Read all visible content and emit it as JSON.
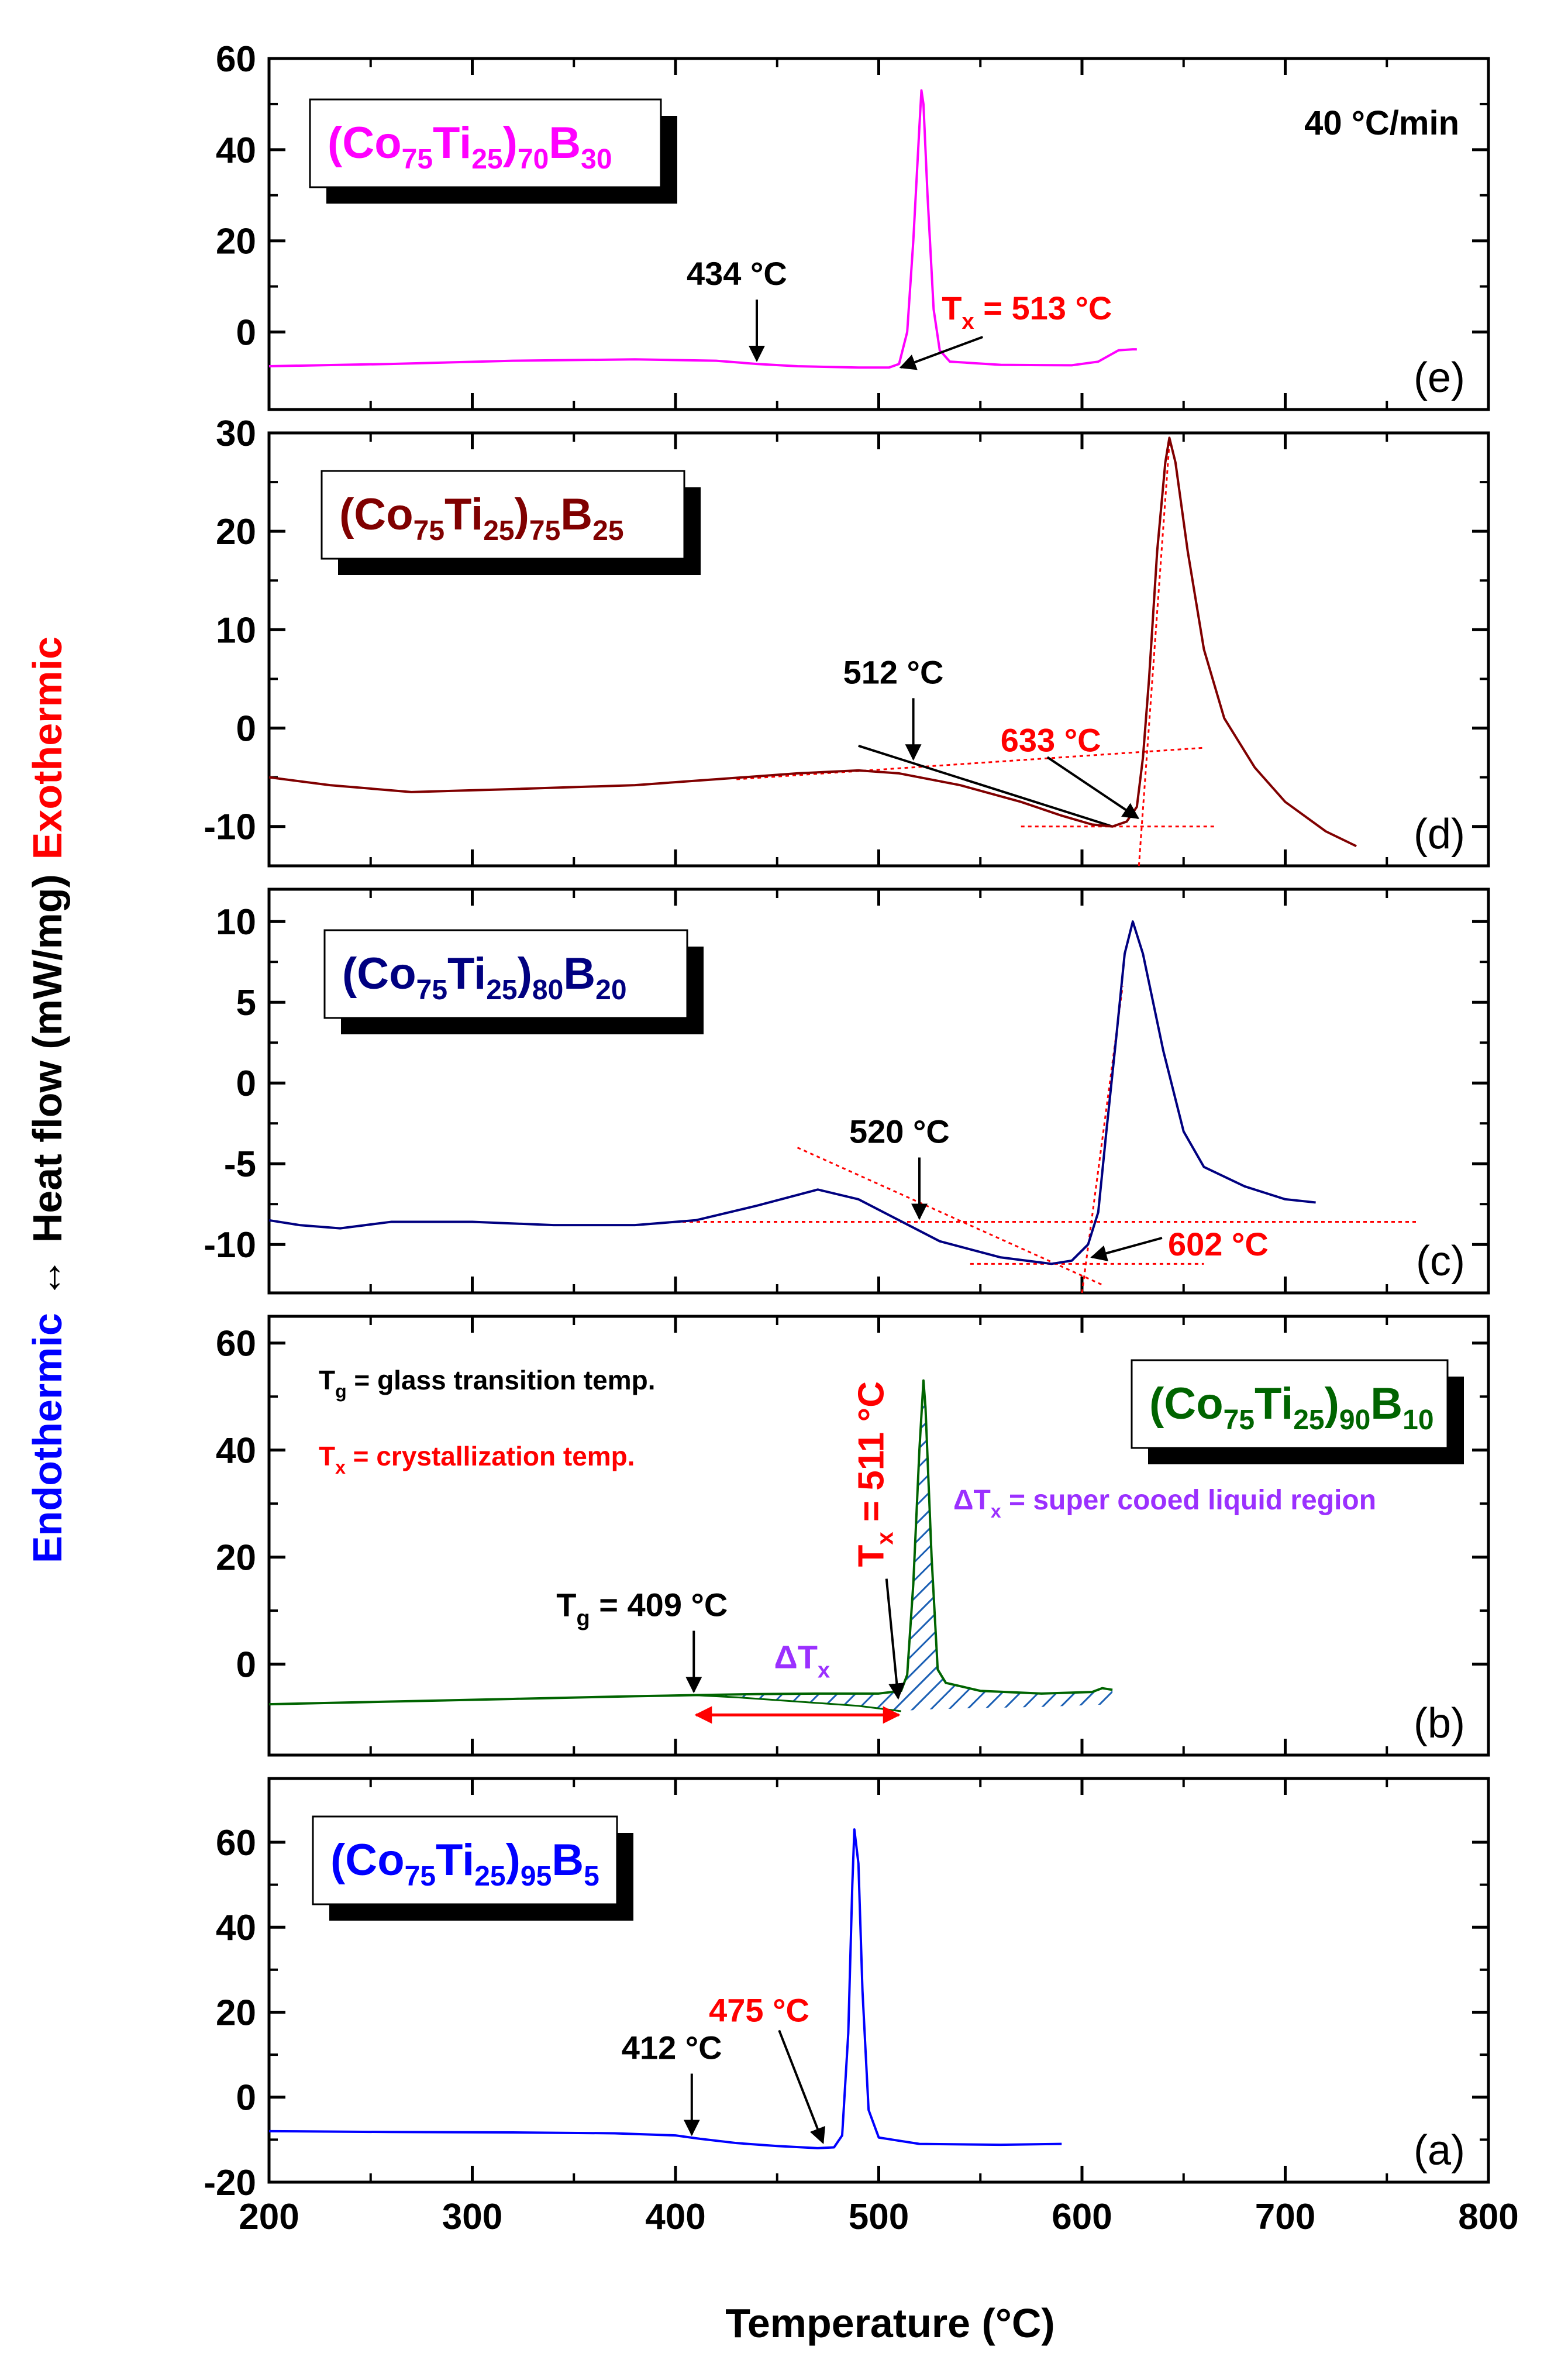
{
  "chart_data": {
    "type": "line",
    "heating_rate": "40 °C/min",
    "xlabel": "Temperature (°C)",
    "xlim": [
      200,
      800
    ],
    "x_ticks": [
      "200",
      "300",
      "400",
      "500",
      "600",
      "700",
      "800"
    ],
    "ylabel": {
      "main": "Heat flow (mW/mg)",
      "endo": "Endothermic",
      "exo": "Exothermic",
      "arrow": "↔"
    },
    "panels": [
      {
        "id": "e",
        "label": "(e)",
        "color": "#ff00ff",
        "legend": {
          "base": "(Co",
          "s1": "75",
          "ti": "Ti",
          "s2": "25",
          "cl": ")",
          "s3": "70",
          "b": "B",
          "s4": "30"
        },
        "ylim": [
          -17,
          60
        ],
        "y_ticks": [
          0,
          20,
          40,
          60
        ],
        "curve": [
          [
            200,
            -7.5
          ],
          [
            260,
            -7
          ],
          [
            320,
            -6.3
          ],
          [
            380,
            -6
          ],
          [
            420,
            -6.3
          ],
          [
            440,
            -7
          ],
          [
            460,
            -7.5
          ],
          [
            490,
            -7.8
          ],
          [
            505,
            -7.8
          ],
          [
            510,
            -7
          ],
          [
            514,
            0
          ],
          [
            517,
            20
          ],
          [
            520,
            45
          ],
          [
            521,
            53
          ],
          [
            522,
            50
          ],
          [
            524,
            30
          ],
          [
            527,
            5
          ],
          [
            530,
            -4
          ],
          [
            535,
            -6.5
          ],
          [
            560,
            -7.2
          ],
          [
            595,
            -7.3
          ],
          [
            608,
            -6.5
          ],
          [
            618,
            -4
          ],
          [
            625,
            -3.8
          ],
          [
            627,
            -3.8
          ]
        ],
        "annotations": [
          {
            "kind": "tg",
            "text": "434 °C",
            "x": 440,
            "y": -7.0,
            "color": "#000000"
          },
          {
            "kind": "tx",
            "text": "Tx = 513 °C",
            "tsym": "T",
            "tsub": "x",
            "tval": " = 513 °C",
            "x": 508,
            "y": -7.5,
            "color": "#ff0000"
          }
        ]
      },
      {
        "id": "d",
        "label": "(d)",
        "color": "#800000",
        "legend": {
          "base": "(Co",
          "s1": "75",
          "ti": "Ti",
          "s2": "25",
          "cl": ")",
          "s3": "75",
          "b": "B",
          "s4": "25"
        },
        "ylim": [
          -14,
          30
        ],
        "y_ticks": [
          -10,
          0,
          10,
          20,
          30
        ],
        "curve": [
          [
            200,
            -5
          ],
          [
            230,
            -5.8
          ],
          [
            270,
            -6.5
          ],
          [
            320,
            -6.2
          ],
          [
            380,
            -5.8
          ],
          [
            420,
            -5.2
          ],
          [
            460,
            -4.6
          ],
          [
            490,
            -4.3
          ],
          [
            510,
            -4.6
          ],
          [
            540,
            -5.8
          ],
          [
            570,
            -7.5
          ],
          [
            590,
            -8.9
          ],
          [
            605,
            -9.8
          ],
          [
            615,
            -10
          ],
          [
            622,
            -9.5
          ],
          [
            627,
            -8
          ],
          [
            630,
            -3
          ],
          [
            633,
            5
          ],
          [
            637,
            18
          ],
          [
            641,
            27
          ],
          [
            643,
            29.5
          ],
          [
            646,
            27
          ],
          [
            652,
            18
          ],
          [
            660,
            8
          ],
          [
            670,
            1
          ],
          [
            685,
            -4
          ],
          [
            700,
            -7.5
          ],
          [
            720,
            -10.5
          ],
          [
            735,
            -12
          ]
        ],
        "annotations": [
          {
            "kind": "tg",
            "text": "512 °C",
            "x": 517,
            "y": -3.5,
            "color": "#000000"
          },
          {
            "kind": "tx",
            "text": "633 °C",
            "x": 629,
            "y": -9.5,
            "color": "#ff0000"
          }
        ]
      },
      {
        "id": "c",
        "label": "(c)",
        "color": "#000080",
        "legend": {
          "base": "(Co",
          "s1": "75",
          "ti": "Ti",
          "s2": "25",
          "cl": ")",
          "s3": "80",
          "b": "B",
          "s4": "20"
        },
        "ylim": [
          -13,
          12
        ],
        "y_ticks": [
          -10,
          -5,
          0,
          5,
          10
        ],
        "curve": [
          [
            200,
            -8.5
          ],
          [
            215,
            -8.8
          ],
          [
            235,
            -9
          ],
          [
            260,
            -8.6
          ],
          [
            300,
            -8.6
          ],
          [
            340,
            -8.8
          ],
          [
            380,
            -8.8
          ],
          [
            410,
            -8.5
          ],
          [
            440,
            -7.6
          ],
          [
            470,
            -6.6
          ],
          [
            490,
            -7.2
          ],
          [
            510,
            -8.5
          ],
          [
            530,
            -9.8
          ],
          [
            560,
            -10.8
          ],
          [
            585,
            -11.2
          ],
          [
            595,
            -11
          ],
          [
            603,
            -10
          ],
          [
            608,
            -8
          ],
          [
            612,
            -3
          ],
          [
            617,
            3
          ],
          [
            621,
            8
          ],
          [
            625,
            10
          ],
          [
            630,
            8
          ],
          [
            640,
            2
          ],
          [
            650,
            -3
          ],
          [
            660,
            -5.2
          ],
          [
            680,
            -6.4
          ],
          [
            700,
            -7.2
          ],
          [
            715,
            -7.4
          ]
        ],
        "annotations": [
          {
            "kind": "tg",
            "text": "520 °C",
            "x": 520,
            "y": -8.6,
            "color": "#000000"
          },
          {
            "kind": "tx",
            "text": "602 °C",
            "x": 602,
            "y": -10.5,
            "color": "#ff0000"
          }
        ]
      },
      {
        "id": "b",
        "label": "(b)",
        "color": "#006400",
        "legend": {
          "base": "(Co",
          "s1": "75",
          "ti": "Ti",
          "s2": "25",
          "cl": ")",
          "s3": "90",
          "b": "B",
          "s4": "10"
        },
        "ylim": [
          -17,
          65
        ],
        "y_ticks": [
          0,
          20,
          40,
          60
        ],
        "curve": [
          [
            200,
            -7.5
          ],
          [
            260,
            -7
          ],
          [
            320,
            -6.5
          ],
          [
            380,
            -6
          ],
          [
            409,
            -5.8
          ],
          [
            440,
            -5.6
          ],
          [
            470,
            -5.5
          ],
          [
            500,
            -5.5
          ],
          [
            511,
            -5
          ],
          [
            514,
            -2
          ],
          [
            517,
            15
          ],
          [
            520,
            40
          ],
          [
            522,
            53
          ],
          [
            523,
            48
          ],
          [
            526,
            20
          ],
          [
            529,
            -1
          ],
          [
            533,
            -3.5
          ],
          [
            550,
            -5
          ],
          [
            580,
            -5.5
          ],
          [
            605,
            -5.2
          ],
          [
            610,
            -4.5
          ],
          [
            615,
            -4.8
          ]
        ],
        "hatch": {
          "base_start": [
            409,
            -5.8
          ],
          "base_end": [
            511,
            -8.8
          ],
          "lower": [
            [
              409,
              -5.8
            ],
            [
              430,
              -6.2
            ],
            [
              460,
              -7.0
            ],
            [
              490,
              -7.8
            ],
            [
              511,
              -8.8
            ]
          ],
          "peak_region": [
            [
              511,
              -5
            ],
            [
              514,
              -2
            ],
            [
              517,
              15
            ],
            [
              520,
              40
            ],
            [
              522,
              53
            ],
            [
              523,
              48
            ],
            [
              526,
              20
            ],
            [
              529,
              -1
            ],
            [
              533,
              -3.5
            ],
            [
              550,
              -5
            ],
            [
              580,
              -5.5
            ],
            [
              605,
              -5.2
            ],
            [
              610,
              -4.5
            ],
            [
              615,
              -4.8
            ],
            [
              615,
              -7.5
            ],
            [
              580,
              -8
            ],
            [
              550,
              -8.2
            ],
            [
              520,
              -8.5
            ],
            [
              511,
              -8.8
            ]
          ]
        },
        "definitions": {
          "tg": {
            "sym": "T",
            "sub": "g",
            "text": " = glass transition temp."
          },
          "tx": {
            "sym": "T",
            "sub": "x",
            "text": " = crystallization temp."
          },
          "dtx": {
            "sym": "ΔT",
            "sub": "x",
            "text": " = super cooed liquid region"
          }
        },
        "annotations": [
          {
            "kind": "tg",
            "text": "Tg = 409 °C",
            "tsym": "T",
            "tsub": "g",
            "tval": " = 409 °C",
            "x": 409,
            "y": -5.8,
            "color": "#000000"
          },
          {
            "kind": "tx",
            "text": "Tx = 511 °C",
            "tsym": "T",
            "tsub": "x",
            "tval": " = 511 °C",
            "x": 511,
            "y": -7,
            "color": "#ff0000"
          },
          {
            "kind": "dtx",
            "text": "ΔTx",
            "tsym": "ΔT",
            "tsub": "x",
            "x_from": 409,
            "x_to": 511,
            "y": -9.5,
            "color": "#9b30ff"
          }
        ]
      },
      {
        "id": "a",
        "label": "(a)",
        "color": "#0000ff",
        "legend": {
          "base": "(Co",
          "s1": "75",
          "ti": "Ti",
          "s2": "25",
          "cl": ")",
          "s3": "95",
          "b": "B",
          "s4": "5"
        },
        "ylim": [
          -20,
          75
        ],
        "y_ticks": [
          -20,
          0,
          20,
          40,
          60
        ],
        "curve": [
          [
            200,
            -8
          ],
          [
            260,
            -8.2
          ],
          [
            320,
            -8.3
          ],
          [
            370,
            -8.5
          ],
          [
            400,
            -9
          ],
          [
            412,
            -9.8
          ],
          [
            430,
            -10.8
          ],
          [
            450,
            -11.5
          ],
          [
            470,
            -12
          ],
          [
            478,
            -11.8
          ],
          [
            482,
            -9
          ],
          [
            485,
            15
          ],
          [
            487,
            50
          ],
          [
            488,
            63
          ],
          [
            490,
            55
          ],
          [
            492,
            25
          ],
          [
            495,
            -3
          ],
          [
            500,
            -9.5
          ],
          [
            520,
            -11
          ],
          [
            560,
            -11.2
          ],
          [
            590,
            -11
          ]
        ],
        "annotations": [
          {
            "kind": "tg",
            "text": "412 °C",
            "x": 408,
            "y": -9.6,
            "color": "#000000"
          },
          {
            "kind": "tx",
            "text": "475 °C",
            "x": 474,
            "y": -11.8,
            "color": "#ff0000"
          }
        ]
      }
    ]
  }
}
